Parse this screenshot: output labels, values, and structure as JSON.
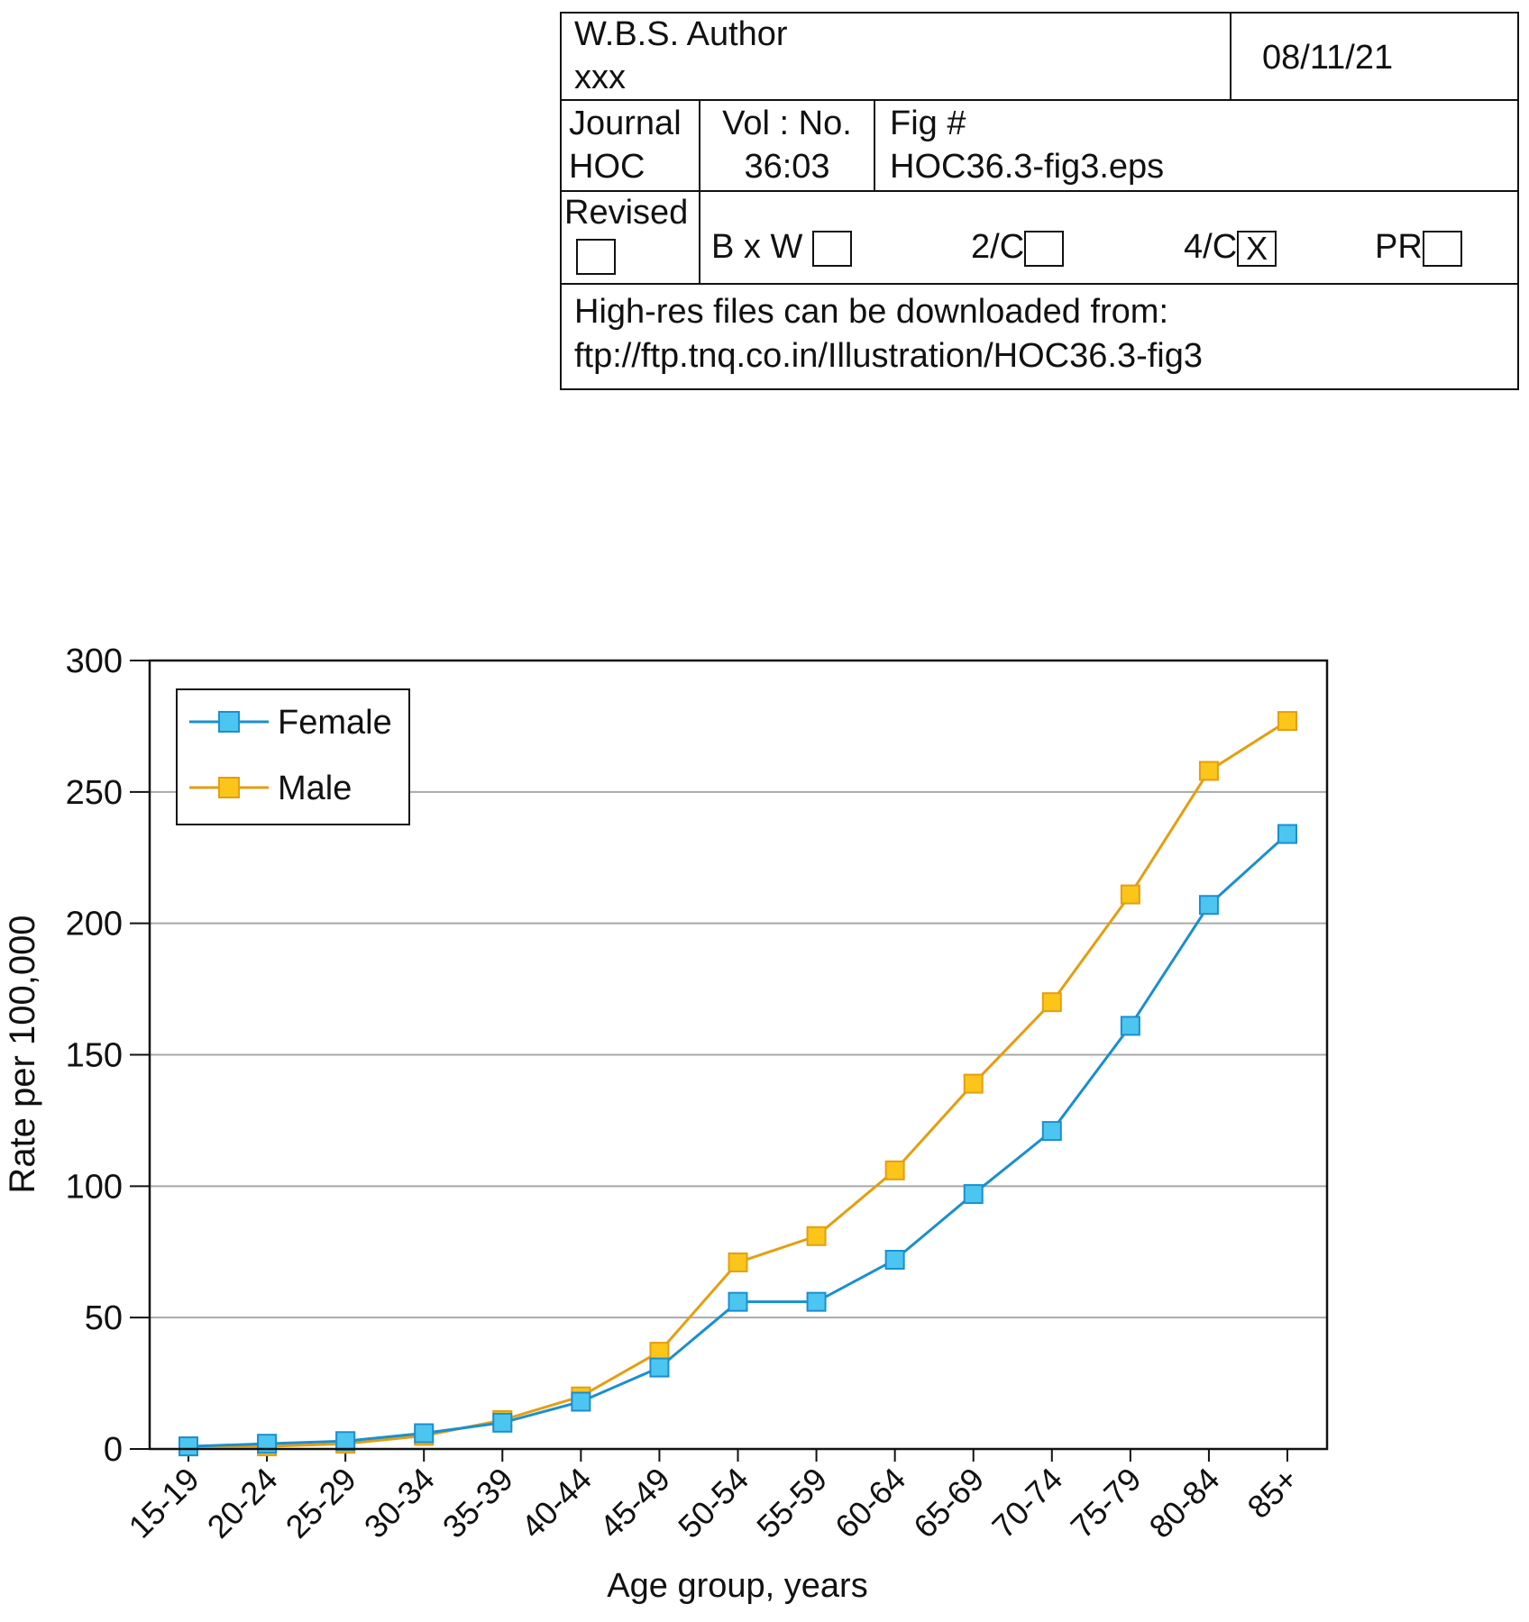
{
  "header": {
    "author_label": "W.B.S. Author",
    "author_value": "xxx",
    "date": "08/11/21",
    "journal_label": "Journal",
    "journal_value": "HOC",
    "vol_label": "Vol : No.",
    "vol_value": "36:03",
    "fig_label": "Fig #",
    "fig_value": "HOC36.3-fig3.eps",
    "revised_label": "Revised",
    "options": [
      {
        "label": "B x W",
        "checked": false
      },
      {
        "label": "2/C",
        "checked": false
      },
      {
        "label": "4/C",
        "checked": true,
        "mark": "X"
      },
      {
        "label": "PR",
        "checked": false
      }
    ],
    "download_line1": "High-res files can be downloaded from:",
    "download_line2": "ftp://ftp.tnq.co.in/Illustration/HOC36.3-fig3"
  },
  "chart_data": {
    "type": "line",
    "title": "",
    "xlabel": "Age group, years",
    "ylabel": "Rate per 100,000",
    "ylim": [
      0,
      300
    ],
    "yticks": [
      0,
      50,
      100,
      150,
      200,
      250,
      300
    ],
    "grid": true,
    "legend_position": "top-left",
    "categories": [
      "15-19",
      "20-24",
      "25-29",
      "30-34",
      "35-39",
      "40-44",
      "45-49",
      "50-54",
      "55-59",
      "60-64",
      "65-69",
      "70-74",
      "75-79",
      "80-84",
      "85+"
    ],
    "series": [
      {
        "name": "Female",
        "color": "#1a8fd0",
        "marker_fill": "#4cc6f0",
        "values": [
          1,
          2,
          3,
          6,
          10,
          18,
          31,
          56,
          56,
          72,
          97,
          121,
          161,
          207,
          234
        ]
      },
      {
        "name": "Male",
        "color": "#e59e10",
        "marker_fill": "#fcc51a",
        "values": [
          1,
          1,
          2,
          5,
          11,
          20,
          37,
          71,
          81,
          106,
          139,
          170,
          211,
          258,
          277
        ]
      }
    ]
  }
}
